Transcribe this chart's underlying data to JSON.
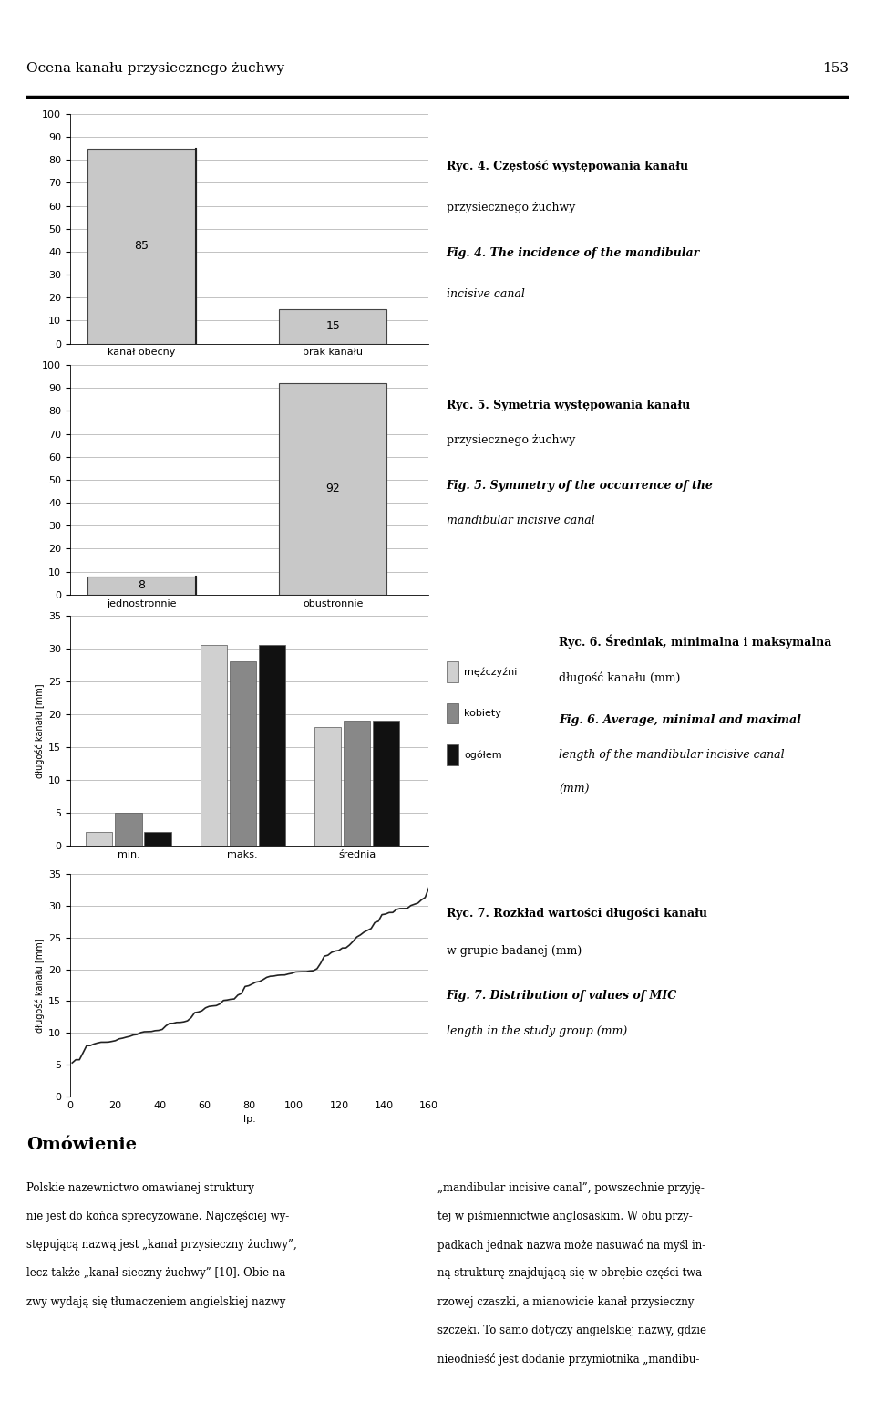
{
  "header_title": "Ocena kanału przysiecznego żuchwy",
  "header_pagenum": "153",
  "chart1": {
    "categories": [
      "kanał obecny",
      "brak kanału"
    ],
    "values": [
      85,
      15
    ],
    "bar_color": "#c8c8c8",
    "bar_edge_color": "#444444",
    "ylim": [
      0,
      100
    ],
    "yticks": [
      0,
      10,
      20,
      30,
      40,
      50,
      60,
      70,
      80,
      90,
      100
    ],
    "labels": [
      85,
      15
    ],
    "caption_pl": "Ryc. 4. Częstość występowania kanału\nprzysiecznego żuchwy",
    "caption_en": "Fig. 4. The incidence of the mandibular\nincisive canal"
  },
  "chart2": {
    "categories": [
      "jednostronnie",
      "obustronnie"
    ],
    "values": [
      8,
      92
    ],
    "bar_color": "#c8c8c8",
    "bar_edge_color": "#444444",
    "ylim": [
      0,
      100
    ],
    "yticks": [
      0,
      10,
      20,
      30,
      40,
      50,
      60,
      70,
      80,
      90,
      100
    ],
    "labels": [
      8,
      92
    ],
    "caption_pl": "Ryc. 5. Symetria występowania kanału\nprzysiecznego żuchwy",
    "caption_en": "Fig. 5. Symmetry of the occurrence of the\nmandibular incisive canal"
  },
  "chart3": {
    "groups": [
      "min.",
      "maks.",
      "średnia"
    ],
    "series": {
      "męźczyźni": [
        2.0,
        30.5,
        18.0
      ],
      "kobiety": [
        5.0,
        28.0,
        19.0
      ],
      "ogółem": [
        2.0,
        30.5,
        19.0
      ]
    },
    "colors": {
      "męźczyźni": "#d0d0d0",
      "kobiety": "#888888",
      "ogółem": "#111111"
    },
    "ylim": [
      0,
      35
    ],
    "yticks": [
      0,
      5,
      10,
      15,
      20,
      25,
      30,
      35
    ],
    "ylabel": "długość kanału [mm]",
    "caption_pl": "Ryc. 6. Średniak, minimalna i maksymalna\ndługość kanału (mm)",
    "caption_en": "Fig. 6. Average, minimal and maximal\nlength of the mandibular incisive canal\n(mm)"
  },
  "chart4": {
    "xlim": [
      0,
      160
    ],
    "ylim": [
      0,
      35
    ],
    "xticks": [
      0,
      20,
      40,
      60,
      80,
      100,
      120,
      140,
      160
    ],
    "yticks": [
      0,
      5,
      10,
      15,
      20,
      25,
      30,
      35
    ],
    "xlabel": "lp.",
    "ylabel": "długość kanału [mm]",
    "line_color": "#222222",
    "line_width": 1.2,
    "caption_pl": "Ryc. 7. Rozkład wartości długości kanału\nw grupie badanej (mm)",
    "caption_en": "Fig. 7. Distribution of values of MIC\nlength in the study group (mm)"
  },
  "omowienie_title": "Omówienie",
  "omowienie_text": "Polskie nazewnictwo omawianej struktury\nnie jest do końca sprecyzowane. Najczęściej wy-\nstępującą nazwą jest „kanał przysieczny żuchwy”,\nlecz także „kanał sieczny żuchwy” [10]. Obie na-\nzwy wydają się tłumaczeniem angielskiej nazwy",
  "omowienie_text2": "„mandibular incisive canal”, powszechnie przyję-\ntej w piśmiennictwie anglosaskim. W obu przy-\npadkach jednak nazwa może nasuwać na myśl in-\nną strukturę znajdującą się w obrębie części twa-\nrzowej czaszki, a mianowicie kanał przysieczny\nszczeki. To samo dotyczy angielskiej nazwy, gdzie\nnieodnieść jest dodanie przymiotnika „mandibu-",
  "background_color": "#ffffff",
  "grid_color": "#aaaaaa",
  "font_size": 9,
  "tick_font_size": 8,
  "label_font_size": 8,
  "caption_fontsize": 9
}
